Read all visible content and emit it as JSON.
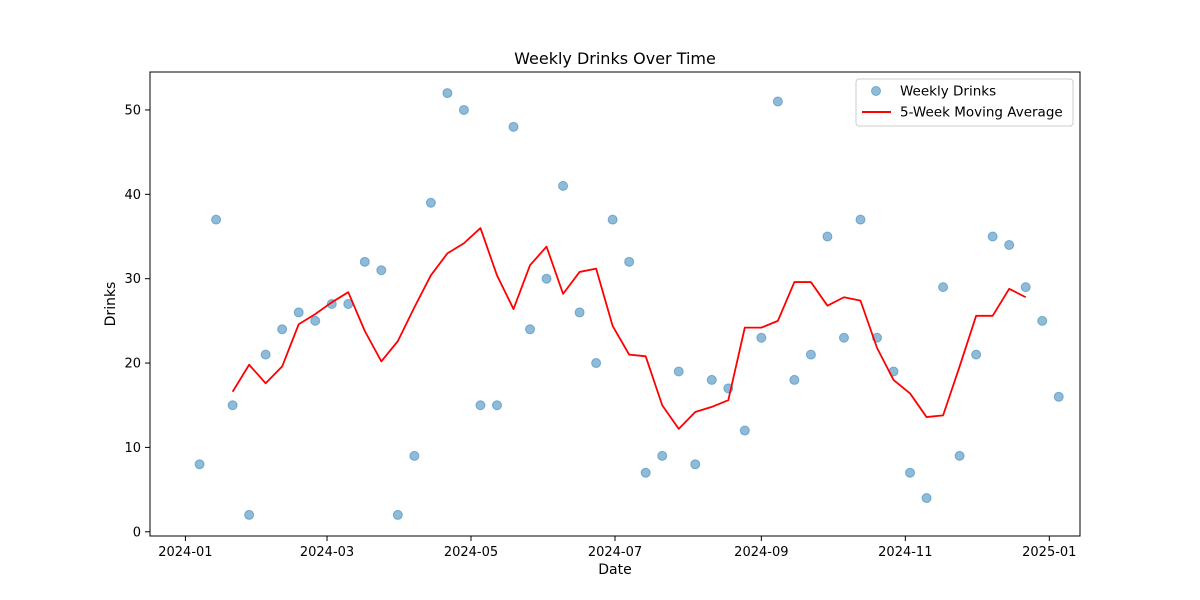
{
  "chart_data": {
    "type": "scatter",
    "title": "Weekly Drinks Over Time",
    "xlabel": "Date",
    "ylabel": "Drinks",
    "legend_position": "top-right",
    "grid": false,
    "xlim": [
      "2023-12-17",
      "2025-01-14"
    ],
    "ylim": [
      -0.5,
      54.5
    ],
    "x_ticks": [
      "2024-01-01",
      "2024-03-01",
      "2024-05-01",
      "2024-07-01",
      "2024-09-01",
      "2024-11-01",
      "2025-01-01"
    ],
    "x_tick_labels": [
      "2024-01",
      "2024-03",
      "2024-05",
      "2024-07",
      "2024-09",
      "2024-11",
      "2025-01"
    ],
    "y_ticks": [
      0,
      10,
      20,
      30,
      40,
      50
    ],
    "series": [
      {
        "name": "Weekly Drinks",
        "kind": "scatter",
        "color": "#1f77b4",
        "x": [
          "2024-01-07",
          "2024-01-14",
          "2024-01-21",
          "2024-01-28",
          "2024-02-04",
          "2024-02-11",
          "2024-02-18",
          "2024-02-25",
          "2024-03-03",
          "2024-03-10",
          "2024-03-17",
          "2024-03-24",
          "2024-03-31",
          "2024-04-07",
          "2024-04-14",
          "2024-04-21",
          "2024-04-28",
          "2024-05-05",
          "2024-05-12",
          "2024-05-19",
          "2024-05-26",
          "2024-06-02",
          "2024-06-09",
          "2024-06-16",
          "2024-06-23",
          "2024-06-30",
          "2024-07-07",
          "2024-07-14",
          "2024-07-21",
          "2024-07-28",
          "2024-08-04",
          "2024-08-11",
          "2024-08-18",
          "2024-08-25",
          "2024-09-01",
          "2024-09-08",
          "2024-09-15",
          "2024-09-22",
          "2024-09-29",
          "2024-10-06",
          "2024-10-13",
          "2024-10-20",
          "2024-10-27",
          "2024-11-03",
          "2024-11-10",
          "2024-11-17",
          "2024-11-24",
          "2024-12-01",
          "2024-12-08",
          "2024-12-15",
          "2024-12-22",
          "2024-12-29",
          "2025-01-05"
        ],
        "values": [
          8,
          37,
          15,
          2,
          21,
          24,
          26,
          25,
          27,
          27,
          32,
          31,
          2,
          9,
          39,
          52,
          50,
          15,
          15,
          48,
          24,
          30,
          41,
          26,
          20,
          37,
          32,
          7,
          9,
          19,
          8,
          18,
          17,
          12,
          23,
          51,
          18,
          21,
          35,
          23,
          37,
          23,
          19,
          7,
          4,
          29,
          9,
          21,
          35,
          34,
          29,
          25,
          16
        ]
      },
      {
        "name": "5-Week Moving Average",
        "kind": "line",
        "color": "#ff0000",
        "x": [
          "2024-01-21",
          "2024-01-28",
          "2024-02-04",
          "2024-02-11",
          "2024-02-18",
          "2024-02-25",
          "2024-03-03",
          "2024-03-10",
          "2024-03-17",
          "2024-03-24",
          "2024-03-31",
          "2024-04-07",
          "2024-04-14",
          "2024-04-21",
          "2024-04-28",
          "2024-05-05",
          "2024-05-12",
          "2024-05-19",
          "2024-05-26",
          "2024-06-02",
          "2024-06-09",
          "2024-06-16",
          "2024-06-23",
          "2024-06-30",
          "2024-07-07",
          "2024-07-14",
          "2024-07-21",
          "2024-07-28",
          "2024-08-04",
          "2024-08-11",
          "2024-08-18",
          "2024-08-25",
          "2024-09-01",
          "2024-09-08",
          "2024-09-15",
          "2024-09-22",
          "2024-09-29",
          "2024-10-06",
          "2024-10-13",
          "2024-10-20",
          "2024-10-27",
          "2024-11-03",
          "2024-11-10",
          "2024-11-17",
          "2024-11-24",
          "2024-12-01",
          "2024-12-08",
          "2024-12-15",
          "2024-12-22"
        ],
        "values": [
          16.6,
          19.8,
          17.6,
          19.6,
          24.6,
          25.8,
          27.2,
          28.4,
          23.8,
          20.2,
          22.6,
          26.6,
          30.4,
          33,
          34.2,
          36,
          30.4,
          26.4,
          31.6,
          33.8,
          28.2,
          30.8,
          31.2,
          24.4,
          21,
          20.8,
          15,
          12.2,
          14.2,
          14.8,
          15.6,
          24.2,
          24.2,
          25,
          29.6,
          29.6,
          26.8,
          27.8,
          27.4,
          21.8,
          18,
          16.4,
          13.6,
          13.8,
          19.6,
          25.6,
          25.6,
          28.8,
          27.8
        ]
      }
    ]
  }
}
